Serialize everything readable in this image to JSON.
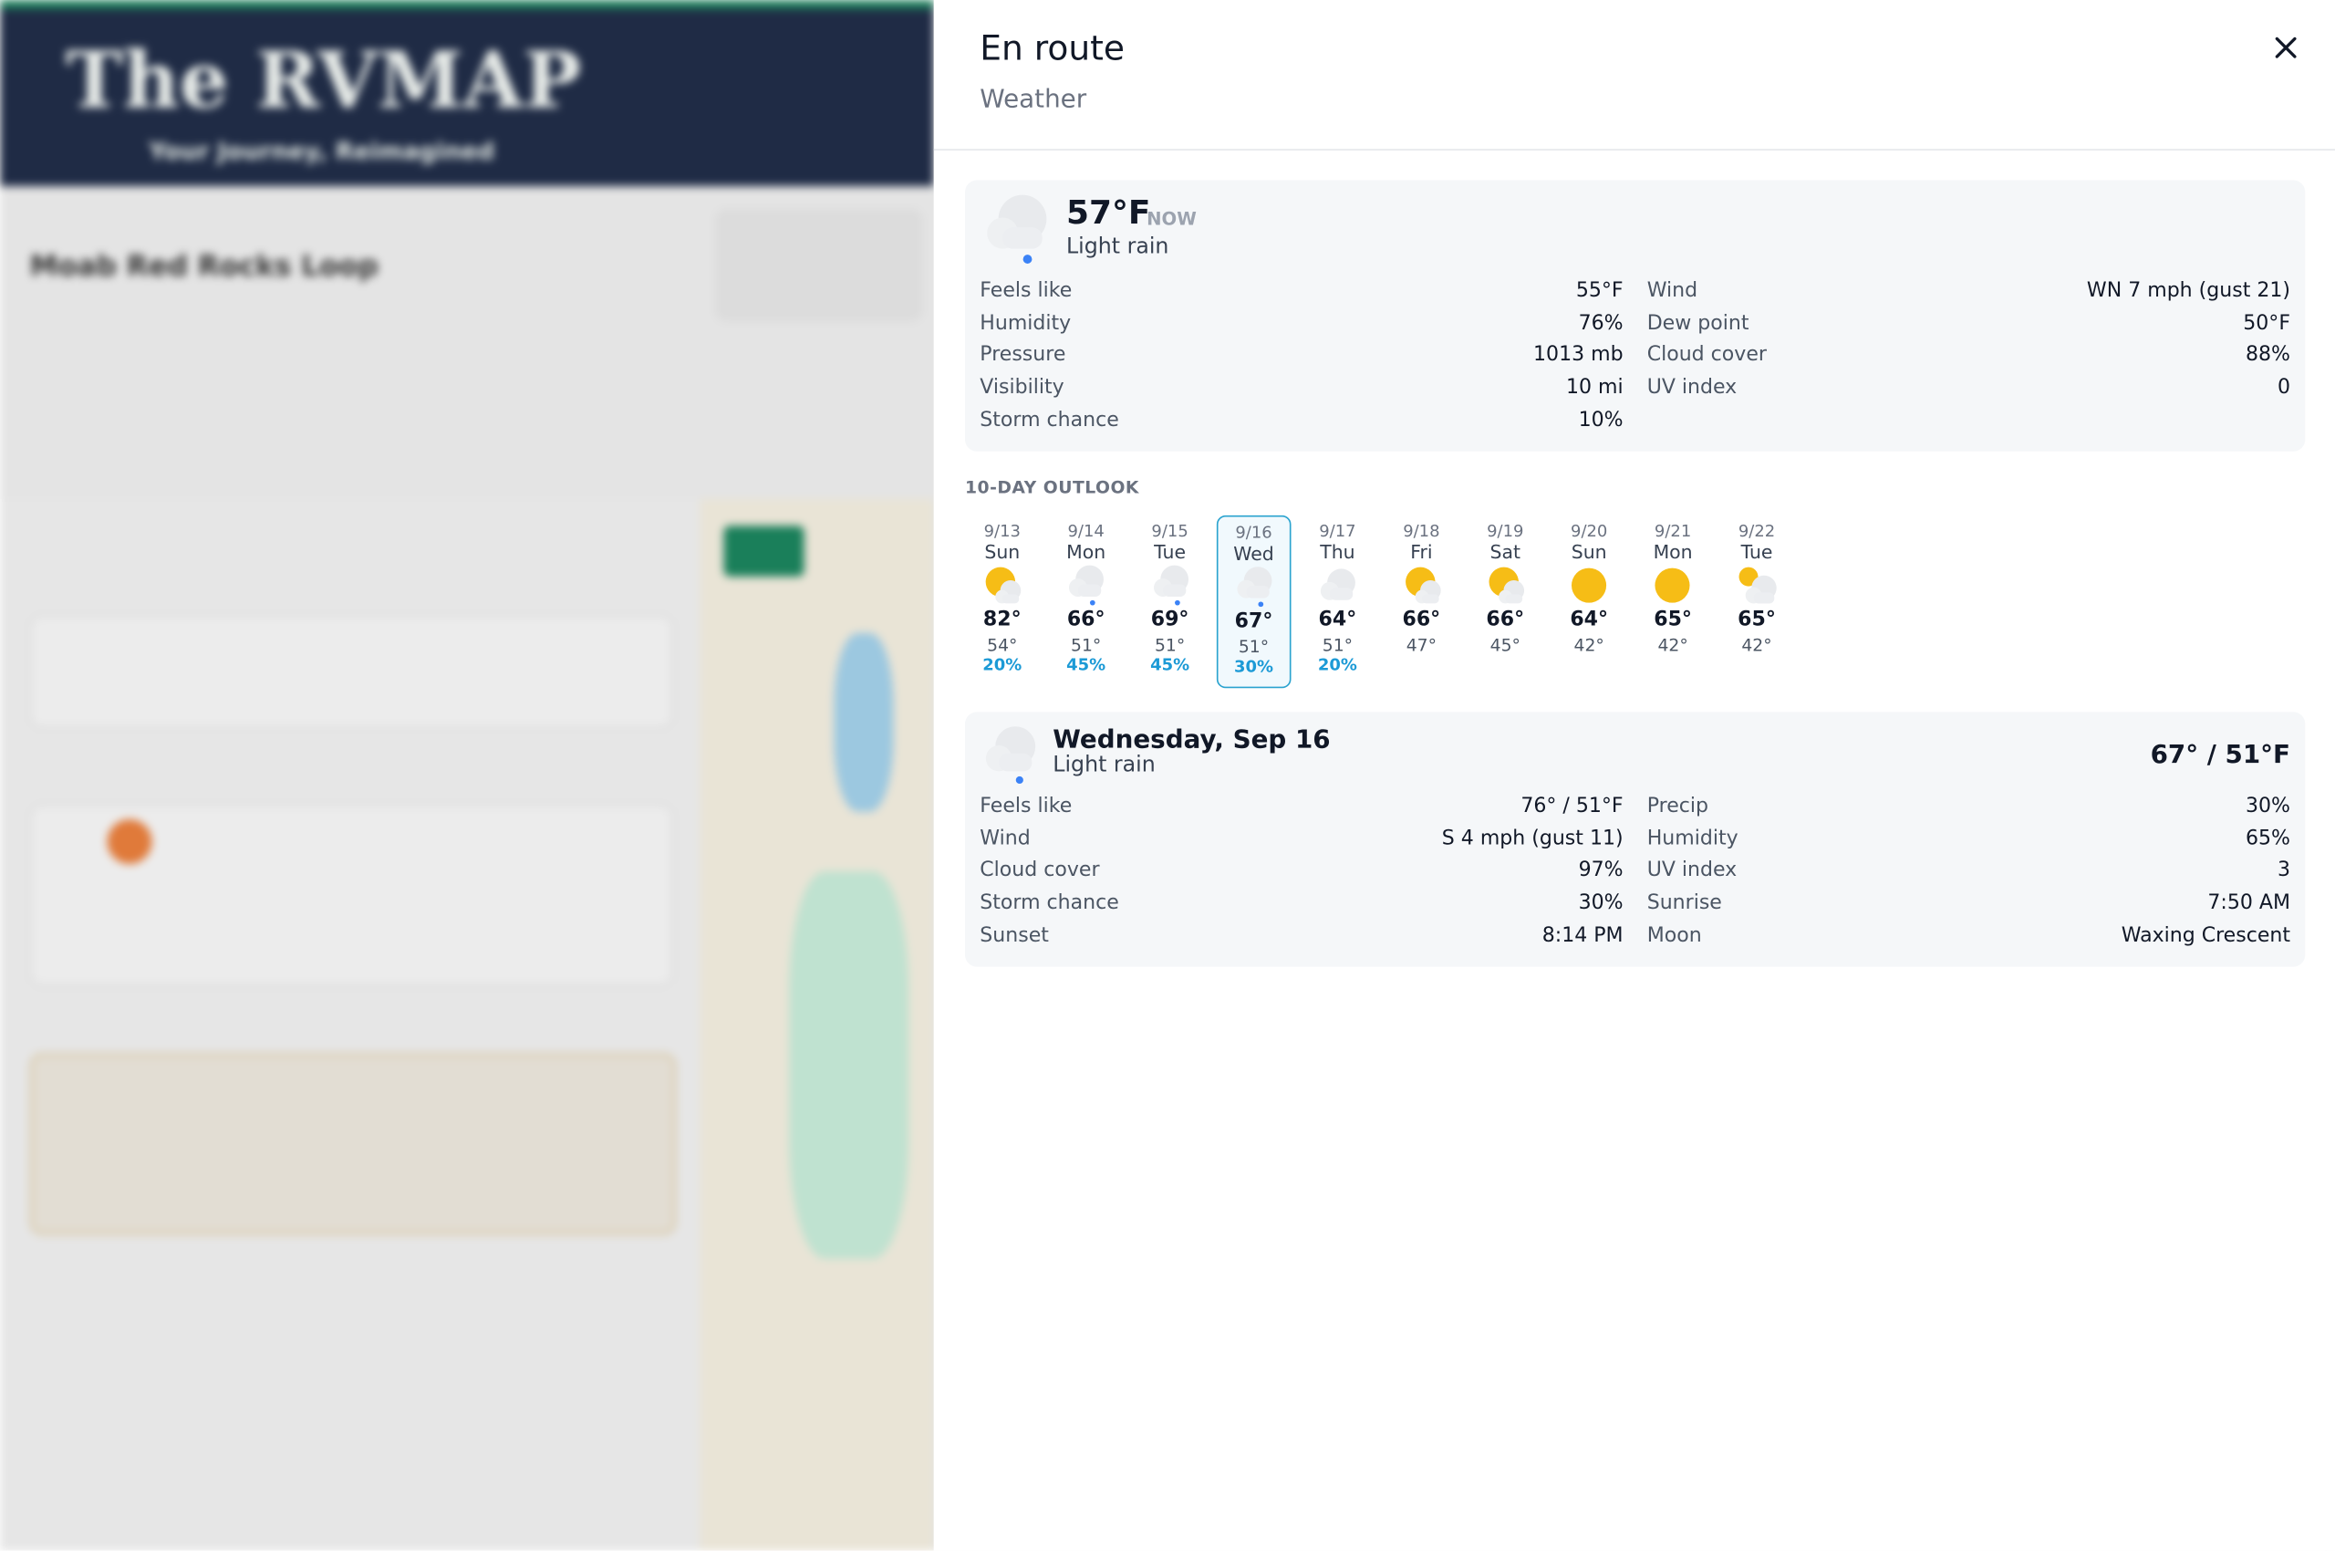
{
  "background": {
    "logo": "The RVMAP",
    "tagline": "Your Journey, Reimagined",
    "trip_name": "Moab Red Rocks Loop"
  },
  "panel": {
    "title": "En route",
    "subtitle": "Weather",
    "current": {
      "icon": "rain",
      "temperature": "57°F",
      "badge": "NOW",
      "condition": "Light rain",
      "details_left": [
        [
          "Feels like",
          "55°F"
        ],
        [
          "Humidity",
          "76%"
        ],
        [
          "Pressure",
          "1013 mb"
        ],
        [
          "Visibility",
          "10 mi"
        ],
        [
          "Storm chance",
          "10%"
        ]
      ],
      "details_right": [
        [
          "Wind",
          "WN 7 mph (gust 21)"
        ],
        [
          "Dew point",
          "50°F"
        ],
        [
          "Cloud cover",
          "88%"
        ],
        [
          "UV index",
          "0"
        ]
      ]
    },
    "outlook": {
      "title": "10-DAY OUTLOOK",
      "selected": 3,
      "days": [
        {
          "date": "9/13",
          "day": "Sun",
          "icon": "partly",
          "high": "82°",
          "low": "54°",
          "precip": "20%"
        },
        {
          "date": "9/14",
          "day": "Mon",
          "icon": "rain",
          "high": "66°",
          "low": "51°",
          "precip": "45%"
        },
        {
          "date": "9/15",
          "day": "Tue",
          "icon": "rain",
          "high": "69°",
          "low": "51°",
          "precip": "45%"
        },
        {
          "date": "9/16",
          "day": "Wed",
          "icon": "rain",
          "high": "67°",
          "low": "51°",
          "precip": "30%"
        },
        {
          "date": "9/17",
          "day": "Thu",
          "icon": "cloud",
          "high": "64°",
          "low": "51°",
          "precip": "20%"
        },
        {
          "date": "9/18",
          "day": "Fri",
          "icon": "partly",
          "high": "66°",
          "low": "47°"
        },
        {
          "date": "9/19",
          "day": "Sat",
          "icon": "partly",
          "high": "66°",
          "low": "45°"
        },
        {
          "date": "9/20",
          "day": "Sun",
          "icon": "sun",
          "high": "64°",
          "low": "42°"
        },
        {
          "date": "9/21",
          "day": "Mon",
          "icon": "sun",
          "high": "65°",
          "low": "42°"
        },
        {
          "date": "9/22",
          "day": "Tue",
          "icon": "mostly-cloudy",
          "high": "65°",
          "low": "42°"
        }
      ]
    },
    "detail": {
      "icon": "rain",
      "title": "Wednesday, Sep 16",
      "condition": "Light rain",
      "range": "67° / 51°F",
      "details_left": [
        [
          "Feels like",
          "76° / 51°F"
        ],
        [
          "Wind",
          "S 4 mph (gust 11)"
        ],
        [
          "Cloud cover",
          "97%"
        ],
        [
          "Storm chance",
          "30%"
        ],
        [
          "Sunset",
          "8:14 PM"
        ]
      ],
      "details_right": [
        [
          "Precip",
          "30%"
        ],
        [
          "Humidity",
          "65%"
        ],
        [
          "UV index",
          "3"
        ],
        [
          "Sunrise",
          "7:50 AM"
        ],
        [
          "Moon",
          "Waxing Crescent"
        ]
      ]
    }
  }
}
